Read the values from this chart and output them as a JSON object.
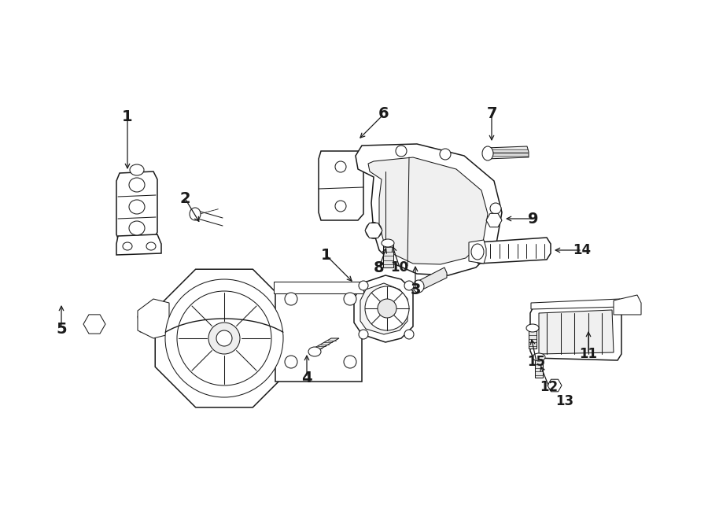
{
  "bg_color": "#ffffff",
  "line_color": "#1a1a1a",
  "fig_width": 9.0,
  "fig_height": 6.61,
  "dpi": 100,
  "labels": {
    "1a": [
      160,
      155,
      160,
      215
    ],
    "1b": [
      418,
      330,
      448,
      358
    ],
    "2": [
      238,
      258,
      263,
      298
    ],
    "3": [
      530,
      368,
      530,
      330
    ],
    "4": [
      393,
      478,
      393,
      438
    ],
    "5": [
      80,
      415,
      80,
      378
    ],
    "6": [
      490,
      148,
      452,
      175
    ],
    "7": [
      628,
      148,
      628,
      185
    ],
    "8": [
      484,
      338,
      484,
      305
    ],
    "9": [
      680,
      282,
      635,
      282
    ],
    "10": [
      510,
      338,
      510,
      305
    ],
    "11": [
      750,
      448,
      750,
      415
    ],
    "12": [
      700,
      490,
      700,
      468
    ],
    "13": [
      720,
      510,
      720,
      510
    ],
    "14": [
      742,
      320,
      700,
      320
    ],
    "15": [
      686,
      458,
      686,
      425
    ]
  }
}
